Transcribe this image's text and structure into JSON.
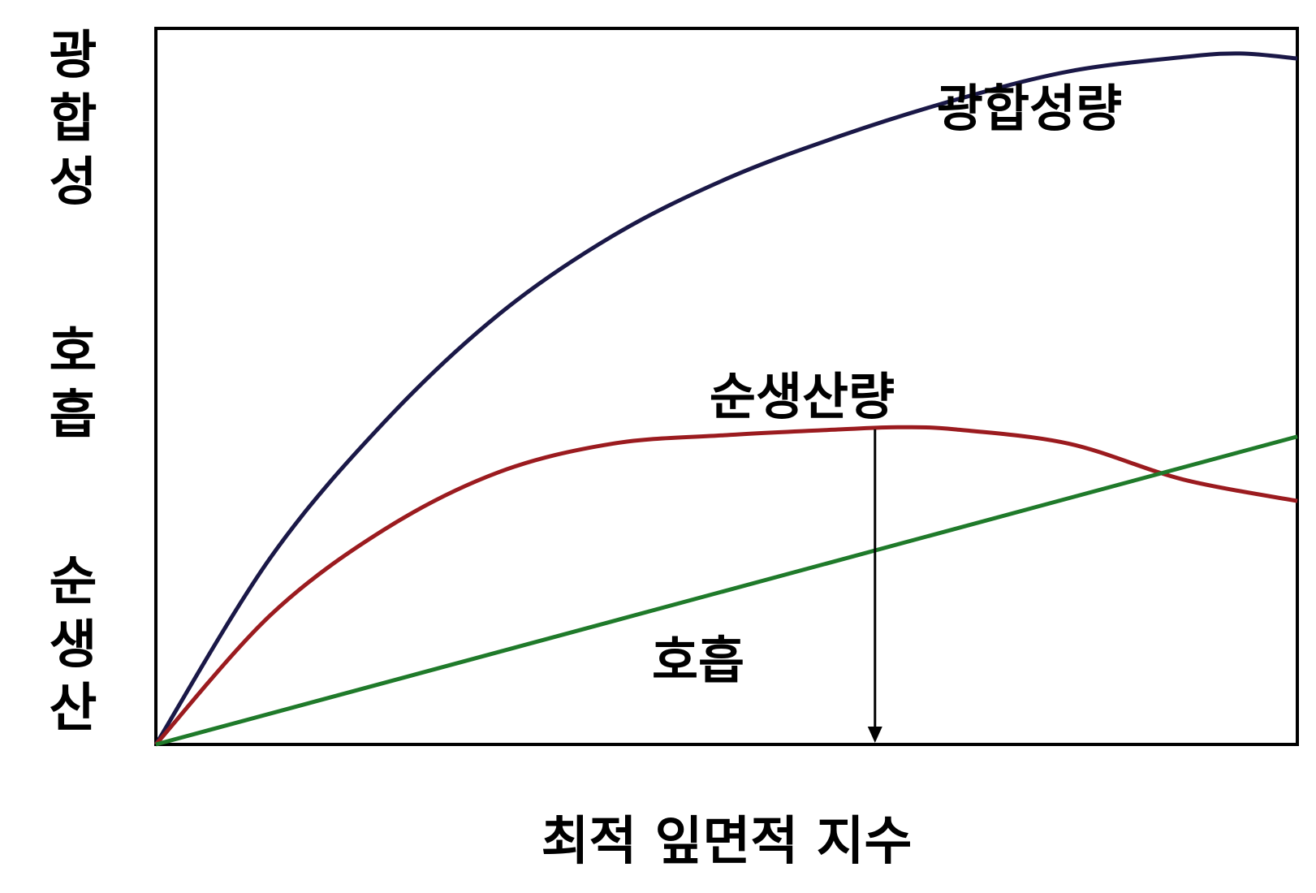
{
  "chart_data": {
    "type": "line",
    "title": "",
    "xlabel": "최적 잎면적 지수",
    "ylabel_groups": [
      [
        "광",
        "합",
        "성"
      ],
      [
        "호",
        "흡"
      ],
      [
        "순",
        "생",
        "산"
      ]
    ],
    "xlim": [
      0,
      1
    ],
    "ylim": [
      0,
      1
    ],
    "x_ticks_shown": false,
    "y_ticks_shown": false,
    "grid": false,
    "series": [
      {
        "name": "광합성량",
        "color": "#1a1847",
        "x": [
          0,
          0.1,
          0.2,
          0.3,
          0.4,
          0.5,
          0.6,
          0.7,
          0.8,
          0.9,
          0.95,
          1.0
        ],
        "y": [
          0,
          0.26,
          0.45,
          0.6,
          0.71,
          0.79,
          0.85,
          0.9,
          0.94,
          0.96,
          0.965,
          0.958
        ]
      },
      {
        "name": "순생산량",
        "color": "#9b1b1f",
        "x": [
          0,
          0.1,
          0.2,
          0.3,
          0.4,
          0.5,
          0.6,
          0.65,
          0.7,
          0.8,
          0.9,
          1.0
        ],
        "y": [
          0,
          0.18,
          0.3,
          0.38,
          0.42,
          0.432,
          0.44,
          0.443,
          0.44,
          0.42,
          0.37,
          0.34
        ]
      },
      {
        "name": "호흡",
        "color": "#1f7a2a",
        "x": [
          0,
          1
        ],
        "y": [
          0,
          0.43
        ]
      }
    ],
    "annotations": [
      {
        "type": "arrow-down",
        "x": 0.63,
        "from_y": 0.44,
        "to_y": 0
      }
    ]
  }
}
